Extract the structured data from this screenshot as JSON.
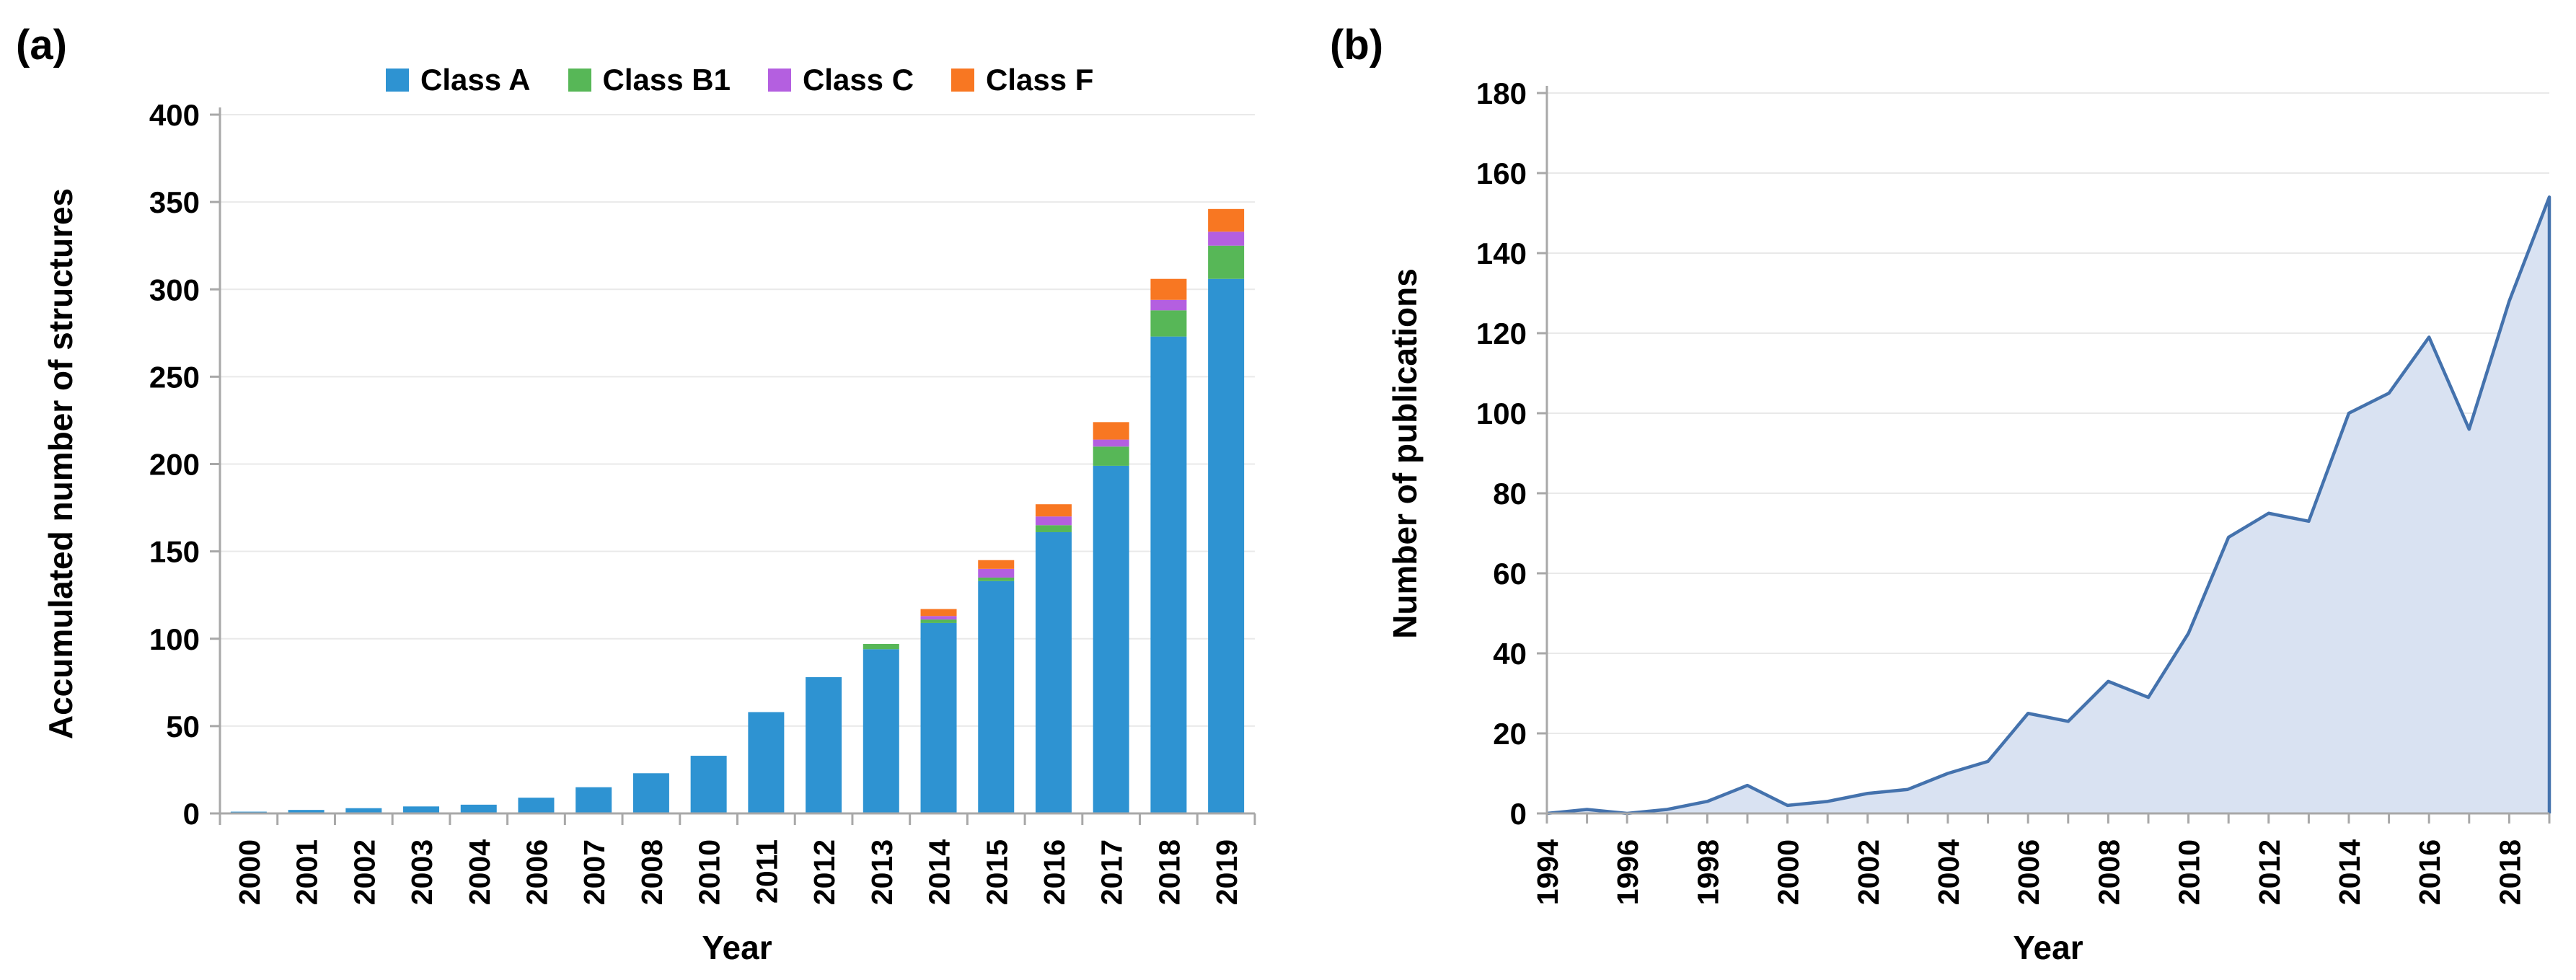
{
  "figure": {
    "panel_a_label": "(a)",
    "panel_b_label": "(b)"
  },
  "chart_data": [
    {
      "type": "bar",
      "stacked": true,
      "xlabel": "Year",
      "ylabel": "Accumulated number of structures",
      "ylim": [
        0,
        400
      ],
      "ytick_step": 50,
      "yticks": [
        0,
        50,
        100,
        150,
        200,
        250,
        300,
        350,
        400
      ],
      "grid": true,
      "legend_position": "top",
      "categories": [
        "2000",
        "2001",
        "2002",
        "2003",
        "2004",
        "2006",
        "2007",
        "2008",
        "2010",
        "2011",
        "2012",
        "2013",
        "2014",
        "2015",
        "2016",
        "2017",
        "2018",
        "2019"
      ],
      "series": [
        {
          "name": "Class A",
          "color": "#2E93D2",
          "values": [
            1,
            2,
            3,
            4,
            5,
            9,
            15,
            23,
            33,
            58,
            78,
            94,
            109,
            133,
            161,
            199,
            273,
            306
          ]
        },
        {
          "name": "Class B1",
          "color": "#57B757",
          "values": [
            0,
            0,
            0,
            0,
            0,
            0,
            0,
            0,
            0,
            0,
            0,
            3,
            2,
            2,
            4,
            11,
            15,
            19
          ]
        },
        {
          "name": "Class C",
          "color": "#B45FE0",
          "values": [
            0,
            0,
            0,
            0,
            0,
            0,
            0,
            0,
            0,
            0,
            0,
            0,
            2,
            5,
            5,
            4,
            6,
            8
          ]
        },
        {
          "name": "Class F",
          "color": "#F87722",
          "values": [
            0,
            0,
            0,
            0,
            0,
            0,
            0,
            0,
            0,
            0,
            0,
            0,
            4,
            5,
            7,
            10,
            12,
            13
          ]
        }
      ]
    },
    {
      "type": "area",
      "xlabel": "Year",
      "ylabel": "Number of publications",
      "ylim": [
        0,
        180
      ],
      "ytick_step": 20,
      "yticks": [
        0,
        20,
        40,
        60,
        80,
        100,
        120,
        140,
        160,
        180
      ],
      "grid": true,
      "line_color": "#4472AD",
      "fill_color": "#D9E2F2",
      "x": [
        1994,
        1995,
        1996,
        1997,
        1998,
        1999,
        2000,
        2001,
        2002,
        2003,
        2004,
        2005,
        2006,
        2007,
        2008,
        2009,
        2010,
        2011,
        2012,
        2013,
        2014,
        2015,
        2016,
        2017,
        2018,
        2019
      ],
      "values": [
        0,
        1,
        0,
        1,
        3,
        7,
        2,
        3,
        5,
        6,
        10,
        13,
        25,
        23,
        33,
        29,
        45,
        69,
        75,
        73,
        100,
        105,
        119,
        96,
        128,
        154
      ],
      "xtick_labels": [
        "1994",
        "1996",
        "1998",
        "2000",
        "2002",
        "2004",
        "2006",
        "2008",
        "2010",
        "2012",
        "2014",
        "2016",
        "2018"
      ]
    }
  ]
}
